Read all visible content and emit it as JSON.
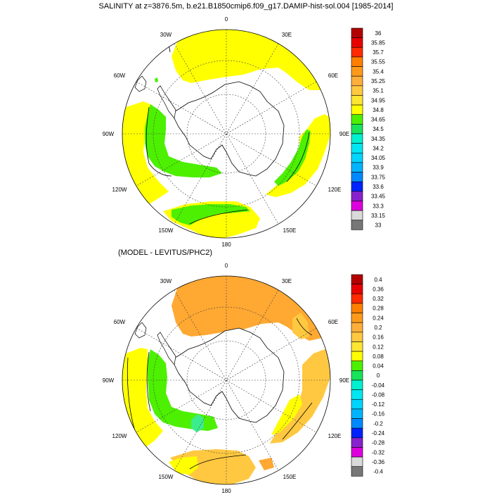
{
  "title": "SALINITY at z=3876.5m, b.e21.B1850cmip6.f09_g17.DAMIP-hist-sol.004 [1985-2014]",
  "subtitle": "(MODEL - LEVITUS/PHC2)",
  "lon_labels": {
    "lon0": "0",
    "lon30e": "30E",
    "lon60e": "60E",
    "lon90e": "90E",
    "lon120e": "120E",
    "lon150e": "150E",
    "lon180": "180",
    "lon150w": "150W",
    "lon120w": "120W",
    "lon90w": "90W",
    "lon60w": "60W",
    "lon30w": "30W"
  },
  "colorbar_top": {
    "labels": [
      "36",
      "35.85",
      "35.7",
      "35.55",
      "35.4",
      "35.25",
      "35.1",
      "34.95",
      "34.8",
      "34.65",
      "34.5",
      "34.35",
      "34.2",
      "34.05",
      "33.9",
      "33.75",
      "33.6",
      "33.45",
      "33.3",
      "33.15",
      "33"
    ],
    "colors": [
      "#b30000",
      "#e60000",
      "#ff2a00",
      "#ff7f00",
      "#ff9a1a",
      "#ffae3c",
      "#ffc840",
      "#ffe533",
      "#ffff00",
      "#4cf000",
      "#19e35a",
      "#00f0d0",
      "#00e6f2",
      "#00d4ff",
      "#00b4ff",
      "#0088ff",
      "#0022ff",
      "#8822cc",
      "#dd00dd",
      "#d9d9d9",
      "#777777"
    ]
  },
  "colorbar_bottom": {
    "labels": [
      "0.4",
      "0.36",
      "0.32",
      "0.28",
      "0.24",
      "0.2",
      "0.16",
      "0.12",
      "0.08",
      "0.04",
      "0",
      "-0.04",
      "-0.08",
      "-0.12",
      "-0.16",
      "-0.2",
      "-0.24",
      "-0.28",
      "-0.32",
      "-0.36",
      "-0.4"
    ],
    "colors": [
      "#b30000",
      "#e60000",
      "#ff2a00",
      "#ff7f00",
      "#ff9a1a",
      "#ffae3c",
      "#ffc840",
      "#ffe533",
      "#ffff00",
      "#4cf000",
      "#19e35a",
      "#00f0d0",
      "#00e6f2",
      "#00d4ff",
      "#00b4ff",
      "#0088ff",
      "#0022ff",
      "#8822cc",
      "#dd00dd",
      "#d9d9d9",
      "#777777"
    ]
  },
  "field_colors": {
    "yellow": "#ffff00",
    "green": "#4cf000",
    "light_green": "#19e35a",
    "orange": "#ffa832",
    "light_orange": "#ffc840",
    "mint": "#3cec8c"
  }
}
